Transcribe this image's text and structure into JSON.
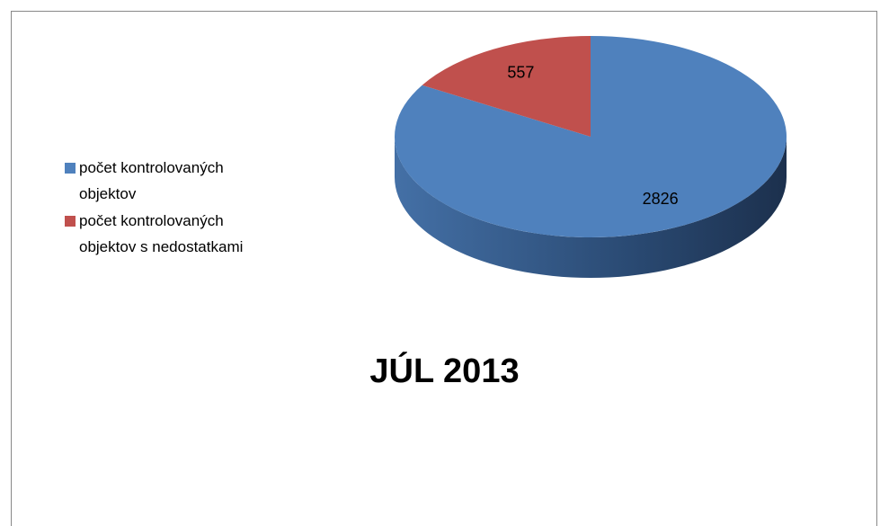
{
  "chart_data": {
    "type": "pie",
    "title": "JÚL 2013",
    "categories": [
      "počet kontrolovaných objektov",
      "počet kontrolovaných objektov s nedostatkami"
    ],
    "values": [
      2826,
      557
    ],
    "colors": [
      "#4f81bd",
      "#c0504d"
    ],
    "legend": "left"
  }
}
